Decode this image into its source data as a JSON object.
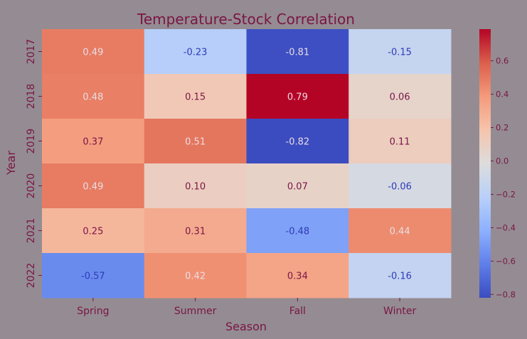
{
  "chart_data": {
    "type": "heatmap",
    "title": "Temperature-Stock Correlation",
    "xlabel": "Season",
    "ylabel": "Year",
    "x_categories": [
      "Spring",
      "Summer",
      "Fall",
      "Winter"
    ],
    "y_categories": [
      "2017",
      "2018",
      "2019",
      "2020",
      "2021",
      "2022"
    ],
    "values": [
      [
        0.49,
        -0.23,
        -0.81,
        -0.15
      ],
      [
        0.48,
        0.15,
        0.79,
        0.06
      ],
      [
        0.37,
        0.51,
        -0.82,
        0.11
      ],
      [
        0.49,
        0.1,
        0.07,
        -0.06
      ],
      [
        0.25,
        0.31,
        -0.48,
        0.44
      ],
      [
        -0.57,
        0.42,
        0.34,
        -0.16
      ]
    ],
    "value_labels": [
      [
        "0.49",
        "-0.23",
        "-0.81",
        "-0.15"
      ],
      [
        "0.48",
        "0.15",
        "0.79",
        "0.06"
      ],
      [
        "0.37",
        "0.51",
        "-0.82",
        "0.11"
      ],
      [
        "0.49",
        "0.10",
        "0.07",
        "-0.06"
      ],
      [
        "0.25",
        "0.31",
        "-0.48",
        "0.44"
      ],
      [
        "-0.57",
        "0.42",
        "0.34",
        "-0.16"
      ]
    ],
    "colormap": "coolwarm",
    "color_range": [
      -0.82,
      0.79
    ],
    "colorbar_ticks": [
      "0.6",
      "0.4",
      "0.2",
      "0.0",
      "−0.2",
      "−0.4",
      "−0.6",
      "−0.8"
    ],
    "colorbar_tick_values": [
      0.6,
      0.4,
      0.2,
      0.0,
      -0.2,
      -0.4,
      -0.6,
      -0.8
    ],
    "colors": {
      "background": "#948c92",
      "text": "#7a1545",
      "cell_text_dark": "#7a1545",
      "cell_text_blue": "#2e3ab8",
      "cell_text_light": "#e9dde3"
    }
  }
}
